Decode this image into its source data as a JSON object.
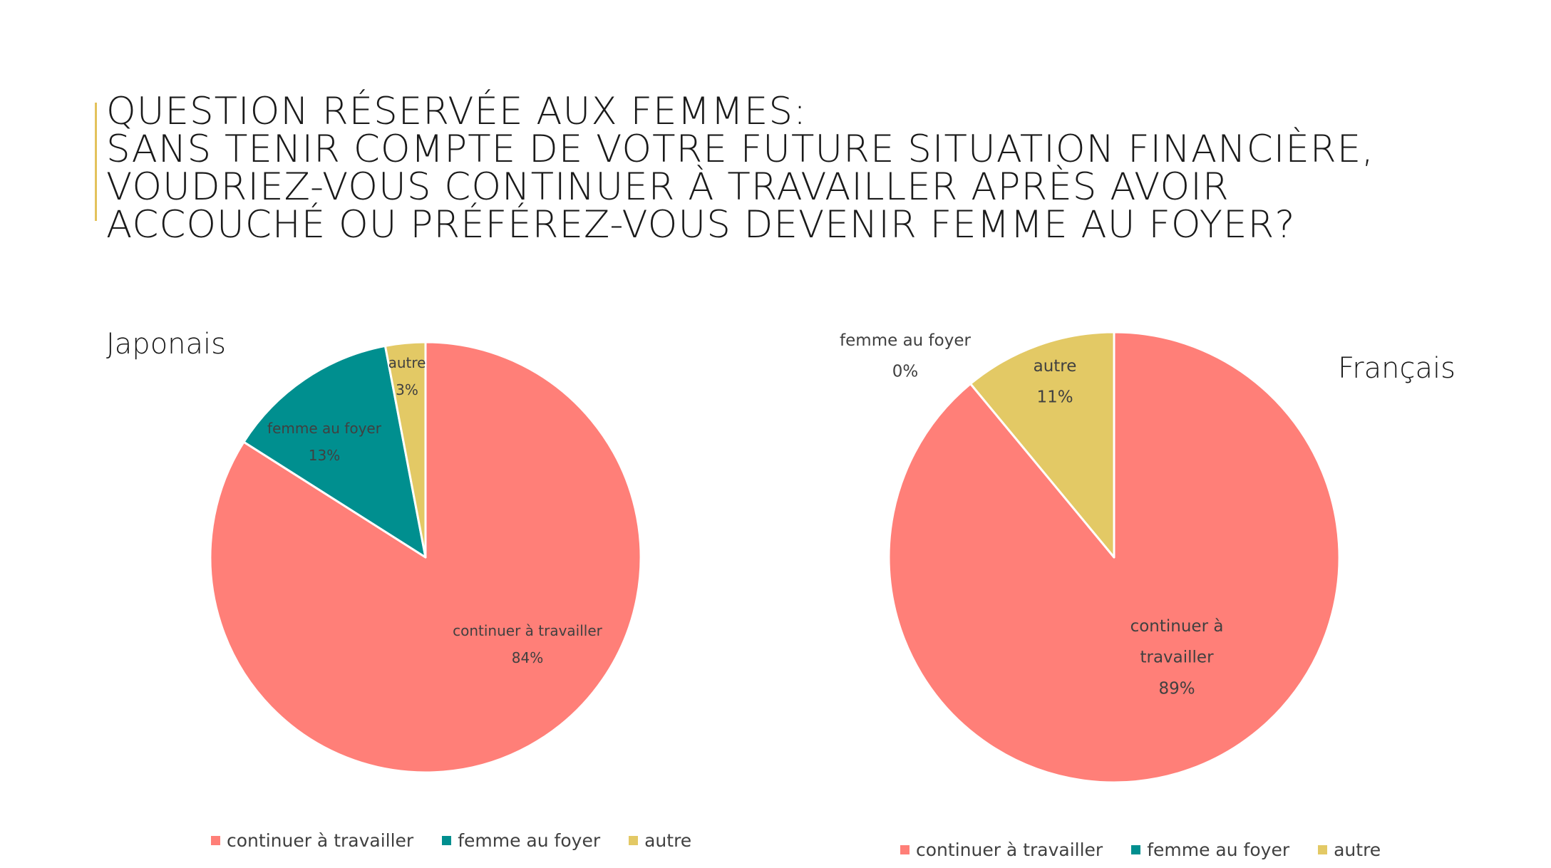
{
  "title": {
    "lines": [
      "QUESTION RÉSERVÉE AUX FEMMES:",
      "SANS TENIR COMPTE DE VOTRE FUTURE SITUATION FINANCIÈRE,",
      "VOUDRIEZ-VOUS CONTINUER À TRAVAILLER APRÈS AVOIR",
      "ACCOUCHÉ OU PRÉFÉREZ-VOUS DEVENIR FEMME AU FOYER?"
    ]
  },
  "colors": {
    "continuer": "#ff7f78",
    "femme": "#008f8f",
    "autre": "#e3c965",
    "accent": "#e3c25b"
  },
  "chart_data": [
    {
      "type": "pie",
      "title": "Japonais",
      "categories": [
        "continuer à travailler",
        "femme au foyer",
        "autre"
      ],
      "values": [
        84,
        13,
        3
      ],
      "labels": [
        "84%",
        "13%",
        "3%"
      ],
      "legend": "bottom"
    },
    {
      "type": "pie",
      "title": "Français",
      "categories": [
        "continuer à travailler",
        "femme au foyer",
        "autre"
      ],
      "values": [
        89,
        0,
        11
      ],
      "labels": [
        "89%",
        "0%",
        "11%"
      ],
      "legend": "bottom"
    }
  ],
  "legend": {
    "items": [
      "continuer à travailler",
      "femme au foyer",
      "autre"
    ]
  }
}
